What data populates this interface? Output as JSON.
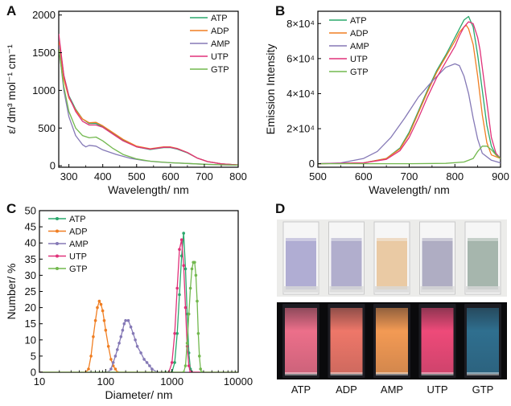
{
  "colors": {
    "ATP": "#2aa86c",
    "ADP": "#f07e22",
    "AMP": "#8579b6",
    "UTP": "#e0327a",
    "GTP": "#72b84e"
  },
  "chart_data": [
    {
      "panel": "A",
      "type": "line",
      "xlabel": "Wavelength/ nm",
      "ylabel": "ε/ dm³ mol⁻¹ cm⁻¹",
      "xlim": [
        270,
        800
      ],
      "ylim": [
        -20,
        2050
      ],
      "xticks": [
        300,
        400,
        500,
        600,
        700,
        800
      ],
      "yticks": [
        0,
        500,
        1000,
        1500,
        2000
      ],
      "legend_position": "top-right",
      "series": [
        {
          "name": "ATP",
          "x": [
            270,
            285,
            300,
            320,
            340,
            360,
            380,
            400,
            430,
            460,
            500,
            540,
            580,
            600,
            620,
            650,
            680,
            710,
            750,
            800
          ],
          "y": [
            1700,
            1200,
            930,
            750,
            620,
            560,
            560,
            520,
            430,
            340,
            250,
            215,
            240,
            240,
            220,
            170,
            100,
            55,
            25,
            10
          ]
        },
        {
          "name": "ADP",
          "x": [
            270,
            285,
            300,
            320,
            340,
            360,
            380,
            400,
            430,
            460,
            500,
            540,
            580,
            600,
            620,
            650,
            680,
            710,
            750,
            800
          ],
          "y": [
            1650,
            1150,
            900,
            740,
            620,
            570,
            575,
            530,
            440,
            350,
            260,
            225,
            250,
            250,
            230,
            175,
            100,
            55,
            25,
            10
          ]
        },
        {
          "name": "AMP",
          "x": [
            270,
            285,
            300,
            320,
            340,
            350,
            360,
            380,
            400,
            440,
            480,
            520,
            560,
            600,
            650,
            700,
            750,
            800
          ],
          "y": [
            1600,
            1000,
            650,
            400,
            280,
            250,
            270,
            260,
            210,
            150,
            100,
            70,
            50,
            40,
            30,
            20,
            12,
            8
          ]
        },
        {
          "name": "UTP",
          "x": [
            270,
            285,
            300,
            320,
            340,
            360,
            380,
            400,
            430,
            460,
            500,
            540,
            580,
            600,
            620,
            650,
            680,
            710,
            750,
            800
          ],
          "y": [
            1750,
            1200,
            920,
            720,
            590,
            540,
            540,
            510,
            420,
            330,
            250,
            220,
            245,
            245,
            225,
            175,
            100,
            55,
            25,
            10
          ]
        },
        {
          "name": "GTP",
          "x": [
            270,
            285,
            300,
            320,
            340,
            360,
            380,
            400,
            430,
            460,
            500,
            540,
            600,
            650,
            700,
            750,
            800
          ],
          "y": [
            1550,
            1050,
            720,
            500,
            400,
            370,
            380,
            330,
            230,
            150,
            90,
            60,
            40,
            30,
            20,
            12,
            8
          ]
        }
      ]
    },
    {
      "panel": "B",
      "type": "line",
      "xlabel": "Wavelength/ nm",
      "ylabel": "Emission Intensity",
      "xlim": [
        500,
        900
      ],
      "ylim": [
        -2000,
        87000
      ],
      "xticks": [
        500,
        600,
        700,
        800,
        900
      ],
      "yticks": [
        0,
        20000,
        40000,
        60000,
        80000
      ],
      "ytick_labels": [
        "0",
        "2×10⁴",
        "4×10⁴",
        "6×10⁴",
        "8×10⁴"
      ],
      "legend_position": "top-left",
      "series": [
        {
          "name": "ATP",
          "x": [
            500,
            600,
            650,
            680,
            700,
            720,
            740,
            760,
            780,
            800,
            810,
            820,
            830,
            840,
            850,
            860,
            870,
            880,
            890,
            900
          ],
          "y": [
            0,
            500,
            3000,
            9000,
            18000,
            30000,
            42000,
            53000,
            62000,
            72000,
            77000,
            82000,
            84000,
            78000,
            62000,
            42000,
            22000,
            10000,
            5000,
            3000
          ]
        },
        {
          "name": "ADP",
          "x": [
            500,
            600,
            650,
            680,
            700,
            720,
            740,
            760,
            780,
            800,
            810,
            820,
            825,
            830,
            840,
            850,
            860,
            870,
            880,
            900
          ],
          "y": [
            0,
            500,
            3000,
            8500,
            17000,
            29000,
            41000,
            52000,
            61000,
            70000,
            75000,
            78000,
            79000,
            77000,
            68000,
            50000,
            28000,
            12000,
            5000,
            3000
          ]
        },
        {
          "name": "AMP",
          "x": [
            500,
            550,
            600,
            630,
            660,
            690,
            720,
            750,
            780,
            800,
            810,
            820,
            830,
            840,
            850,
            860,
            880,
            900
          ],
          "y": [
            0,
            500,
            3000,
            7000,
            15000,
            26000,
            38000,
            47000,
            55000,
            57000,
            56000,
            50000,
            40000,
            26000,
            14000,
            6000,
            2000,
            500
          ]
        },
        {
          "name": "UTP",
          "x": [
            500,
            600,
            650,
            680,
            700,
            720,
            740,
            760,
            780,
            800,
            810,
            820,
            830,
            840,
            850,
            855,
            860,
            870,
            880,
            890,
            900
          ],
          "y": [
            0,
            500,
            2500,
            7500,
            15000,
            26000,
            38000,
            49000,
            58000,
            67000,
            73000,
            78000,
            81000,
            80000,
            72000,
            65000,
            55000,
            35000,
            15000,
            6000,
            3000
          ]
        },
        {
          "name": "GTP",
          "x": [
            500,
            600,
            700,
            780,
            820,
            840,
            850,
            860,
            870,
            880,
            890,
            900
          ],
          "y": [
            0,
            0,
            0,
            200,
            1000,
            3000,
            7000,
            10000,
            10000,
            8000,
            5000,
            3000
          ]
        }
      ]
    },
    {
      "panel": "C",
      "type": "line",
      "xscale": "log",
      "xlabel": "Diameter/ nm",
      "ylabel": "Number/ %",
      "xlim": [
        10,
        10000
      ],
      "ylim": [
        0,
        50
      ],
      "xticks": [
        10,
        100,
        1000,
        10000
      ],
      "yticks": [
        0,
        5,
        10,
        15,
        20,
        25,
        30,
        35,
        40,
        45,
        50
      ],
      "legend_position": "top-left",
      "series": [
        {
          "name": "ATP",
          "x": [
            10,
            800,
            1000,
            1100,
            1200,
            1300,
            1400,
            1500,
            1600,
            1700,
            1800,
            1900,
            2000,
            10000
          ],
          "y": [
            0,
            0,
            0,
            3,
            12,
            24,
            36,
            43,
            32,
            18,
            6,
            1,
            0,
            0
          ]
        },
        {
          "name": "ADP",
          "x": [
            10,
            50,
            55,
            60,
            65,
            70,
            75,
            80,
            85,
            90,
            95,
            100,
            110,
            120,
            130,
            140,
            150,
            10000
          ],
          "y": [
            0,
            0,
            1,
            5,
            11,
            16,
            20,
            22,
            21,
            19,
            16,
            13,
            8,
            4,
            2,
            1,
            0,
            0
          ]
        },
        {
          "name": "AMP",
          "x": [
            10,
            110,
            120,
            130,
            140,
            150,
            160,
            170,
            180,
            190,
            200,
            220,
            240,
            260,
            280,
            300,
            340,
            380,
            420,
            460,
            500,
            600,
            10000
          ],
          "y": [
            0,
            0,
            1,
            3,
            5,
            7,
            9,
            11,
            13,
            15,
            16,
            16,
            14,
            12,
            10,
            8,
            6,
            4,
            3,
            2,
            1,
            0,
            0
          ]
        },
        {
          "name": "UTP",
          "x": [
            10,
            900,
            1000,
            1100,
            1200,
            1300,
            1400,
            1500,
            1600,
            1700,
            1800,
            1900,
            10000
          ],
          "y": [
            0,
            0,
            3,
            12,
            26,
            38,
            41,
            33,
            20,
            8,
            2,
            0,
            0
          ]
        },
        {
          "name": "GTP",
          "x": [
            10,
            1500,
            1600,
            1700,
            1800,
            1900,
            2000,
            2100,
            2200,
            2300,
            2400,
            2500,
            2600,
            2700,
            2800,
            10000
          ],
          "y": [
            0,
            0,
            2,
            9,
            18,
            26,
            32,
            34,
            34,
            30,
            22,
            12,
            5,
            1,
            0,
            0
          ]
        }
      ]
    }
  ],
  "panelA": {
    "letter": "A",
    "legend": [
      "ATP",
      "ADP",
      "AMP",
      "UTP",
      "GTP"
    ]
  },
  "panelB": {
    "letter": "B",
    "legend": [
      "ATP",
      "ADP",
      "AMP",
      "UTP",
      "GTP"
    ]
  },
  "panelC": {
    "letter": "C",
    "legend": [
      "ATP",
      "ADP",
      "AMP",
      "UTP",
      "GTP"
    ]
  },
  "panelD": {
    "letter": "D",
    "labels": [
      "ATP",
      "ADP",
      "AMP",
      "UTP",
      "GTP"
    ],
    "daylight_colors": [
      "#a9a6cf",
      "#aaa7c9",
      "#e8c59c",
      "#a8a6be",
      "#9eb0a6"
    ],
    "uv_colors": [
      "#ec6f8a",
      "#ee7769",
      "#f39a54",
      "#ee4a79",
      "#2f6f8f"
    ]
  }
}
